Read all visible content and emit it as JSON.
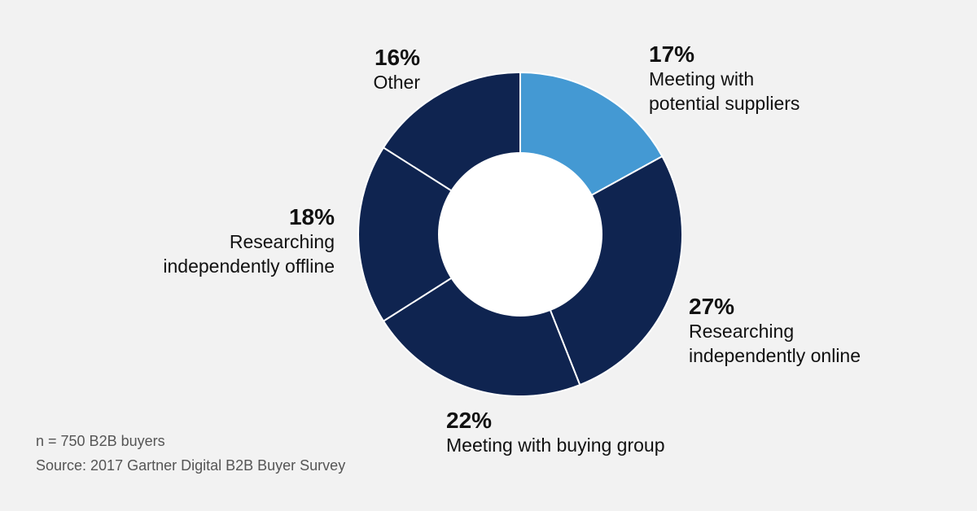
{
  "chart_data": {
    "type": "pie",
    "style": "donut",
    "slices": [
      {
        "value": 17,
        "pct_label": "17%",
        "label": "Meeting with potential suppliers",
        "lines": [
          "Meeting with",
          "potential suppliers"
        ],
        "color": "#4499d3"
      },
      {
        "value": 27,
        "pct_label": "27%",
        "label": "Researching independently online",
        "lines": [
          "Researching",
          "independently online"
        ],
        "color": "#0f2450"
      },
      {
        "value": 22,
        "pct_label": "22%",
        "label": "Meeting with buying group",
        "lines": [
          "Meeting with buying group"
        ],
        "color": "#0f2450"
      },
      {
        "value": 18,
        "pct_label": "18%",
        "label": "Researching independently offline",
        "lines": [
          "Researching",
          "independently offline"
        ],
        "color": "#0f2450"
      },
      {
        "value": 16,
        "pct_label": "16%",
        "label": "Other",
        "lines": [
          "Other"
        ],
        "color": "#0f2450"
      }
    ]
  },
  "footnotes": {
    "sample": "n = 750 B2B buyers",
    "source": "Source: 2017 Gartner Digital B2B Buyer Survey"
  },
  "colors": {
    "background": "#f2f2f2",
    "accent": "#4499d3",
    "dark": "#0f2450",
    "hole": "#ffffff"
  }
}
